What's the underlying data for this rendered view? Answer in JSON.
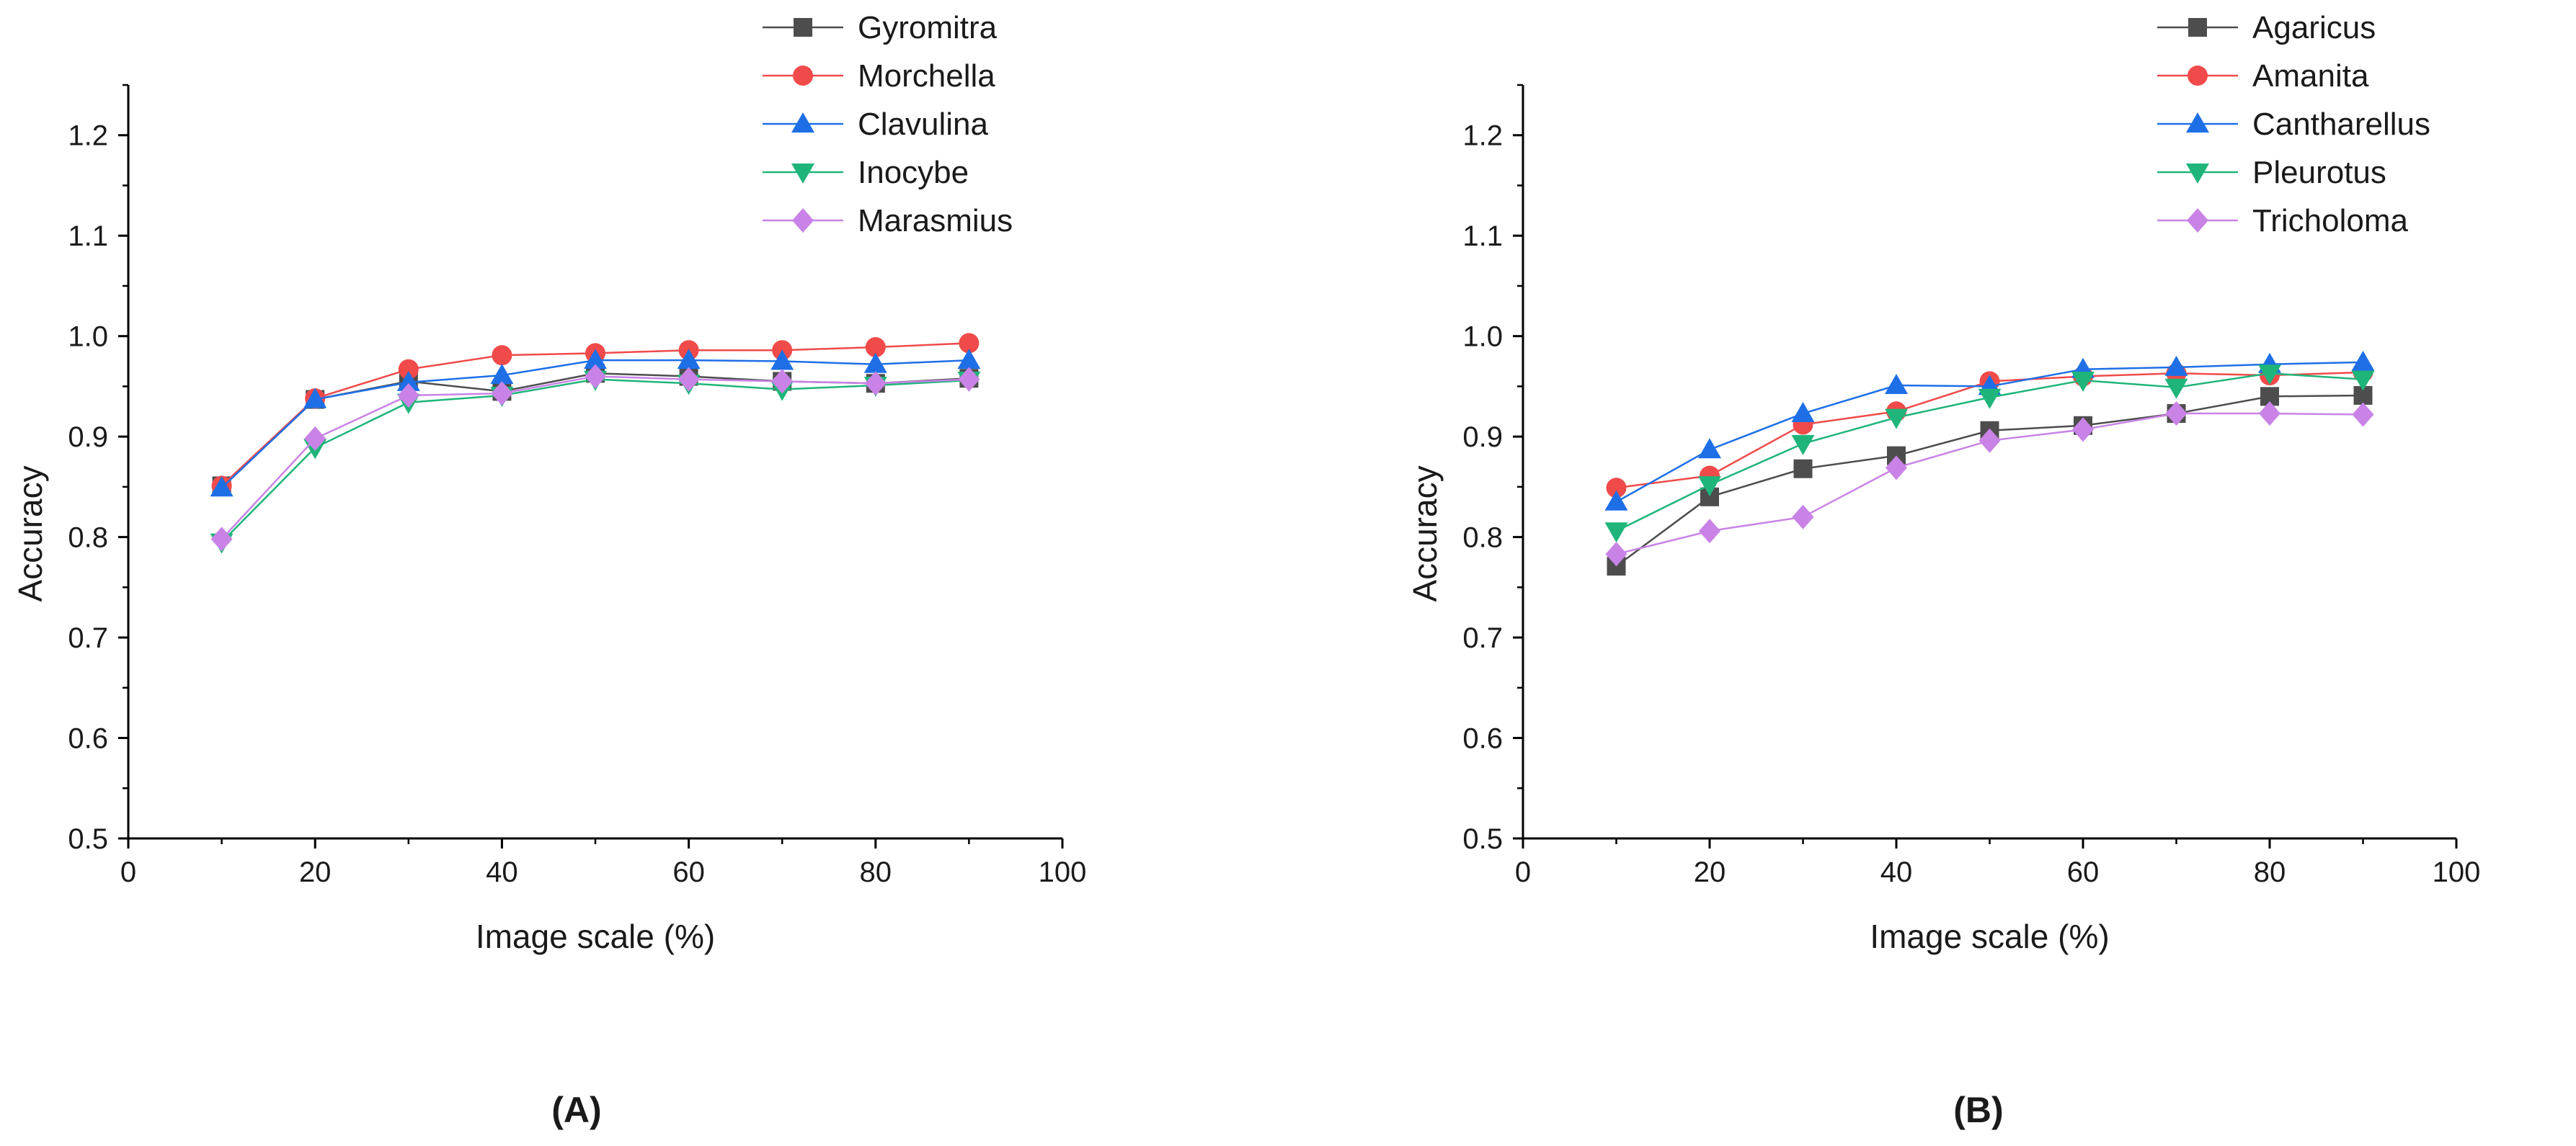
{
  "chart_data": [
    {
      "type": "line",
      "panel_label": "(A)",
      "xlabel": "Image scale (%)",
      "ylabel": "Accuracy",
      "xlim": [
        0,
        100
      ],
      "ylim": [
        0.5,
        1.25
      ],
      "xticks": [
        0,
        20,
        40,
        60,
        80,
        100
      ],
      "yticks": [
        0.5,
        0.6,
        0.7,
        0.8,
        0.9,
        1.0,
        1.1,
        1.2
      ],
      "x": [
        10,
        20,
        30,
        40,
        50,
        60,
        70,
        80,
        90
      ],
      "legend_position": "top-right",
      "series": [
        {
          "name": "Gyromitra",
          "color": "#4d4d4d",
          "marker": "square",
          "values": [
            0.851,
            0.937,
            0.955,
            0.945,
            0.963,
            0.96,
            0.955,
            0.953,
            0.958
          ]
        },
        {
          "name": "Morchella",
          "color": "#f04a4a",
          "marker": "circle",
          "values": [
            0.851,
            0.938,
            0.967,
            0.981,
            0.983,
            0.986,
            0.986,
            0.989,
            0.993
          ]
        },
        {
          "name": "Clavulina",
          "color": "#1e6fe6",
          "marker": "triangle-up",
          "values": [
            0.849,
            0.937,
            0.954,
            0.961,
            0.976,
            0.976,
            0.975,
            0.972,
            0.976
          ]
        },
        {
          "name": "Inocybe",
          "color": "#1fb57a",
          "marker": "triangle-down",
          "values": [
            0.795,
            0.889,
            0.934,
            0.941,
            0.957,
            0.953,
            0.947,
            0.951,
            0.956
          ]
        },
        {
          "name": "Marasmius",
          "color": "#c983e6",
          "marker": "diamond",
          "values": [
            0.798,
            0.898,
            0.941,
            0.943,
            0.96,
            0.957,
            0.955,
            0.953,
            0.957
          ]
        }
      ]
    },
    {
      "type": "line",
      "panel_label": "(B)",
      "xlabel": "Image scale (%)",
      "ylabel": "Accuracy",
      "xlim": [
        0,
        100
      ],
      "ylim": [
        0.5,
        1.25
      ],
      "xticks": [
        0,
        20,
        40,
        60,
        80,
        100
      ],
      "yticks": [
        0.5,
        0.6,
        0.7,
        0.8,
        0.9,
        1.0,
        1.1,
        1.2
      ],
      "x": [
        10,
        20,
        30,
        40,
        50,
        60,
        70,
        80,
        90
      ],
      "legend_position": "top-right",
      "series": [
        {
          "name": "Agaricus",
          "color": "#4d4d4d",
          "marker": "square",
          "values": [
            0.771,
            0.84,
            0.868,
            0.881,
            0.906,
            0.911,
            0.923,
            0.94,
            0.941
          ]
        },
        {
          "name": "Amanita",
          "color": "#f04a4a",
          "marker": "circle",
          "values": [
            0.849,
            0.861,
            0.912,
            0.925,
            0.955,
            0.96,
            0.963,
            0.961,
            0.964
          ]
        },
        {
          "name": "Cantharellus",
          "color": "#1e6fe6",
          "marker": "triangle-up",
          "values": [
            0.835,
            0.887,
            0.923,
            0.951,
            0.95,
            0.967,
            0.969,
            0.972,
            0.974
          ]
        },
        {
          "name": "Pleurotus",
          "color": "#1fb57a",
          "marker": "triangle-down",
          "values": [
            0.806,
            0.852,
            0.893,
            0.919,
            0.939,
            0.956,
            0.949,
            0.963,
            0.957
          ]
        },
        {
          "name": "Tricholoma",
          "color": "#c983e6",
          "marker": "diamond",
          "values": [
            0.783,
            0.806,
            0.82,
            0.869,
            0.896,
            0.907,
            0.923,
            0.923,
            0.922
          ]
        }
      ]
    }
  ]
}
